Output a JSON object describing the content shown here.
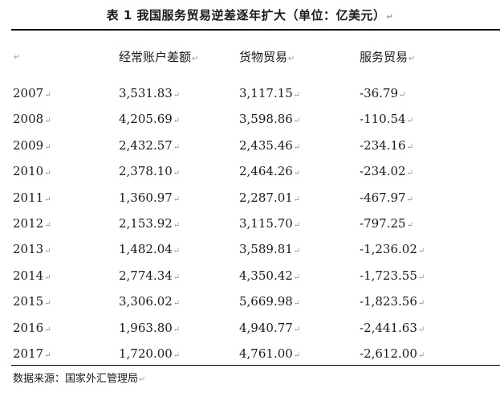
{
  "title": "表 1 我国服务贸易逆差逐年扩大（单位：亿美元）",
  "header": {
    "col0": "",
    "col1": "经常账户差额",
    "col2": "货物贸易",
    "col3": "服务贸易"
  },
  "rows": [
    {
      "year": "2007",
      "current": "3,531.83",
      "goods": "3,117.15",
      "services": "-36.79"
    },
    {
      "year": "2008",
      "current": "4,205.69",
      "goods": "3,598.86",
      "services": "-110.54"
    },
    {
      "year": "2009",
      "current": "2,432.57",
      "goods": "2,435.46",
      "services": "-234.16"
    },
    {
      "year": "2010",
      "current": "2,378.10",
      "goods": "2,464.26",
      "services": "-234.02"
    },
    {
      "year": "2011",
      "current": "1,360.97",
      "goods": "2,287.01",
      "services": "-467.97"
    },
    {
      "year": "2012",
      "current": "2,153.92",
      "goods": "3,115.70",
      "services": "-797.25"
    },
    {
      "year": "2013",
      "current": "1,482.04",
      "goods": "3,589.81",
      "services": "-1,236.02"
    },
    {
      "year": "2014",
      "current": "2,774.34",
      "goods": "4,350.42",
      "services": "-1,723.55"
    },
    {
      "year": "2015",
      "current": "3,306.02",
      "goods": "5,669.98",
      "services": "-1,823.56"
    },
    {
      "year": "2016",
      "current": "1,963.80",
      "goods": "4,940.77",
      "services": "-2,441.63"
    },
    {
      "year": "2017",
      "current": "1,720.00",
      "goods": "4,761.00",
      "services": "-2,612.00"
    }
  ],
  "source": "数据来源：国家外汇管理局",
  "paragraph_mark": "↵"
}
